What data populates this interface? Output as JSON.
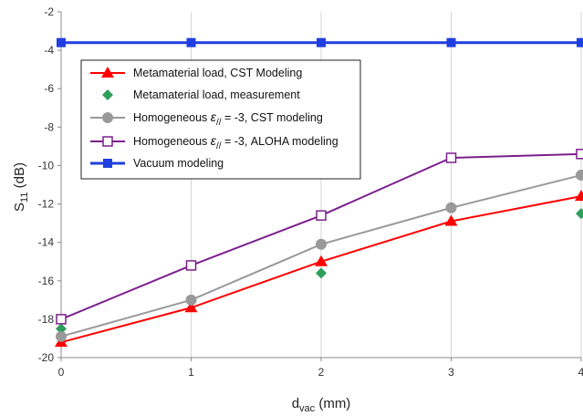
{
  "chart_data": {
    "type": "line",
    "xlabel_main": "d",
    "xlabel_sub": "vac",
    "xlabel_unit": " (mm)",
    "ylabel_main": "S",
    "ylabel_sub": "11",
    "ylabel_unit": " (dB)",
    "xlim": [
      0,
      4
    ],
    "ylim": [
      -20,
      -2
    ],
    "xticks": [
      "0",
      "1",
      "2",
      "3",
      "4"
    ],
    "yticks": [
      "-2",
      "-4",
      "-6",
      "-8",
      "-10",
      "-12",
      "-14",
      "-16",
      "-18",
      "-20"
    ],
    "grid": "vertical",
    "legend_position": "upper-left-inside",
    "series": [
      {
        "name": "Metamaterial load, CST Modeling",
        "color": "#ff0000",
        "marker": "triangle",
        "line": true,
        "x": [
          0,
          1,
          2,
          3,
          4
        ],
        "y": [
          -19.2,
          -17.4,
          -15.0,
          -12.9,
          -11.6
        ]
      },
      {
        "name": "Metamaterial load, measurement",
        "color": "#2e9e5b",
        "marker": "diamond",
        "line": false,
        "x": [
          0,
          2,
          4
        ],
        "y": [
          -18.5,
          -15.6,
          -12.5
        ]
      },
      {
        "name_prefix": "Homogeneous  ",
        "name_symbol": "ε",
        "name_sub": "//",
        "name_suffix": " = -3, CST modeling",
        "color": "#999999",
        "marker": "circle",
        "line": true,
        "x": [
          0,
          1,
          2,
          3,
          4
        ],
        "y": [
          -18.9,
          -17.0,
          -14.1,
          -12.2,
          -10.5
        ]
      },
      {
        "name_prefix": "Homogeneous  ",
        "name_symbol": "ε",
        "name_sub": "//",
        "name_suffix": " = -3, ALOHA modeling",
        "color": "#7b1f8c",
        "marker": "open-square",
        "line": true,
        "x": [
          0,
          1,
          2,
          3,
          4
        ],
        "y": [
          -18.0,
          -15.2,
          -12.6,
          -9.6,
          -9.4
        ]
      },
      {
        "name": "Vacuum modeling",
        "color": "#1f3fe0",
        "marker": "square",
        "line": true,
        "x": [
          0,
          1,
          2,
          3,
          4
        ],
        "y": [
          -3.6,
          -3.6,
          -3.6,
          -3.6,
          -3.6
        ]
      }
    ]
  }
}
